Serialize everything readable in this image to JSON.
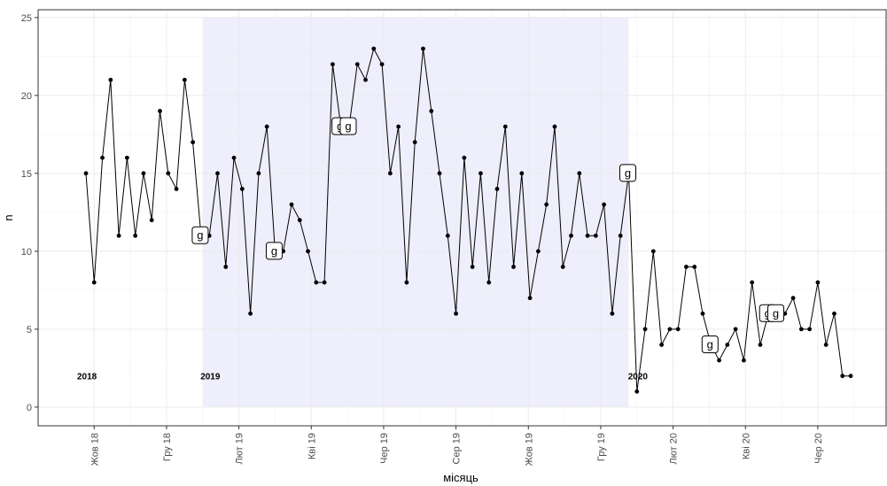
{
  "chart_data": {
    "type": "line",
    "xlabel": "місяць",
    "ylabel": "n",
    "ylim": [
      -1.2,
      25.5
    ],
    "y_ticks": [
      0,
      5,
      10,
      15,
      20,
      25
    ],
    "grid": true,
    "x_tick_labels": [
      "Жов 18",
      "Гру 18",
      "Лют 19",
      "Кві 19",
      "Чер 19",
      "Сер 19",
      "Жов 19",
      "Гру 19",
      "Лют 20",
      "Кві 20",
      "Чер 20"
    ],
    "series": [
      {
        "values": [
          15,
          8,
          16,
          21,
          11,
          16,
          11,
          15,
          12,
          19,
          15,
          14,
          21,
          17,
          11,
          11,
          15,
          9,
          16,
          14,
          6,
          15,
          18,
          10,
          10,
          13,
          12,
          10,
          8,
          8,
          22,
          18,
          18,
          22,
          21,
          23,
          22,
          15,
          18,
          8,
          17,
          23,
          19,
          15,
          11,
          6,
          16,
          9,
          15,
          8,
          14,
          18,
          9,
          15,
          7,
          10,
          13,
          18,
          9,
          11,
          15,
          11,
          11,
          13,
          6,
          11,
          15,
          1,
          5,
          10,
          4,
          5,
          5,
          9,
          9,
          6,
          4,
          3,
          4,
          5,
          3,
          8,
          4,
          6,
          6,
          6,
          7,
          5,
          5,
          8,
          4,
          6,
          2,
          2
        ]
      }
    ],
    "shaded_region": {
      "from_index": 14,
      "to_index": 66,
      "color": "#eeeefc"
    },
    "year_labels": [
      {
        "text": "2018",
        "index": 0,
        "y": 2
      },
      {
        "text": "2019",
        "index": 15,
        "y": 2
      },
      {
        "text": "2020",
        "index": 67,
        "y": 2
      }
    ],
    "flag_markers": [
      {
        "text": "g",
        "index": 14,
        "y": 11
      },
      {
        "text": "g",
        "index": 23,
        "y": 10
      },
      {
        "text": "g",
        "index": 31,
        "y": 18
      },
      {
        "text": "g",
        "index": 32,
        "y": 18
      },
      {
        "text": "g",
        "index": 66,
        "y": 15
      },
      {
        "text": "g",
        "index": 76,
        "y": 4
      },
      {
        "text": "g",
        "index": 83,
        "y": 6
      },
      {
        "text": "g",
        "index": 84,
        "y": 6
      }
    ],
    "colors": {
      "line": "#000000",
      "point": "#000000",
      "grid": "#ebebeb",
      "shade": "#eeeefc"
    }
  }
}
